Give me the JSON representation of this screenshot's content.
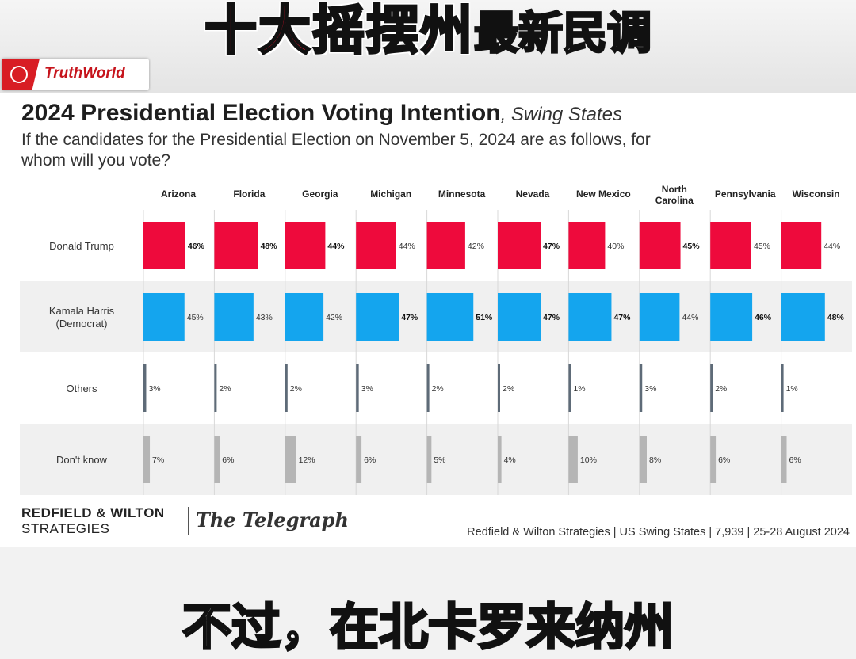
{
  "banner": {
    "headline_red": "十大摇摆州",
    "headline_black": "最新民调",
    "brand": "TruthWorld"
  },
  "title": {
    "main": "2024 Presidential Election Voting Intention",
    "sub": ", Swing States"
  },
  "subtitle": "If the candidates for the Presidential Election on November 5, 2024 are as follows, for whom will you vote?",
  "footer": {
    "logo_line1": "REDFIELD & WILTON",
    "logo_line2": "STRATEGIES",
    "telegraph": "The Telegraph",
    "source": "Redfield & Wilton Strategies | US Swing States | 7,939 | 25-28 August 2024"
  },
  "bottom_subtitle": "不过，在北卡罗来纳州",
  "colors": {
    "trump": "#ee0a3c",
    "harris": "#14a5ee",
    "others": "#5e6b78",
    "dont_know": "#b5b5b5",
    "shaded_row": "#f0f0f0"
  },
  "chart_data": {
    "type": "bar",
    "title": "2024 Presidential Election Voting Intention, Swing States",
    "categories": [
      "Arizona",
      "Florida",
      "Georgia",
      "Michigan",
      "Minnesota",
      "Nevada",
      "New Mexico",
      "North Carolina",
      "Pennsylvania",
      "Wisconsin"
    ],
    "series": [
      {
        "name": "Donald Trump",
        "values": [
          46,
          48,
          44,
          44,
          42,
          47,
          40,
          45,
          45,
          44
        ],
        "bold": [
          true,
          true,
          true,
          false,
          false,
          true,
          false,
          true,
          false,
          false
        ]
      },
      {
        "name": "Kamala Harris (Democrat)",
        "values": [
          45,
          43,
          42,
          47,
          51,
          47,
          47,
          44,
          46,
          48
        ],
        "bold": [
          false,
          false,
          false,
          true,
          true,
          true,
          true,
          false,
          true,
          true
        ]
      },
      {
        "name": "Others",
        "values": [
          3,
          2,
          2,
          3,
          2,
          2,
          1,
          3,
          2,
          1
        ],
        "bold": [
          false,
          false,
          false,
          false,
          false,
          false,
          false,
          false,
          false,
          false
        ]
      },
      {
        "name": "Don't know",
        "values": [
          7,
          6,
          12,
          6,
          5,
          4,
          10,
          8,
          6,
          6
        ],
        "bold": [
          false,
          false,
          false,
          false,
          false,
          false,
          false,
          false,
          false,
          false
        ]
      }
    ],
    "unit": "%"
  }
}
